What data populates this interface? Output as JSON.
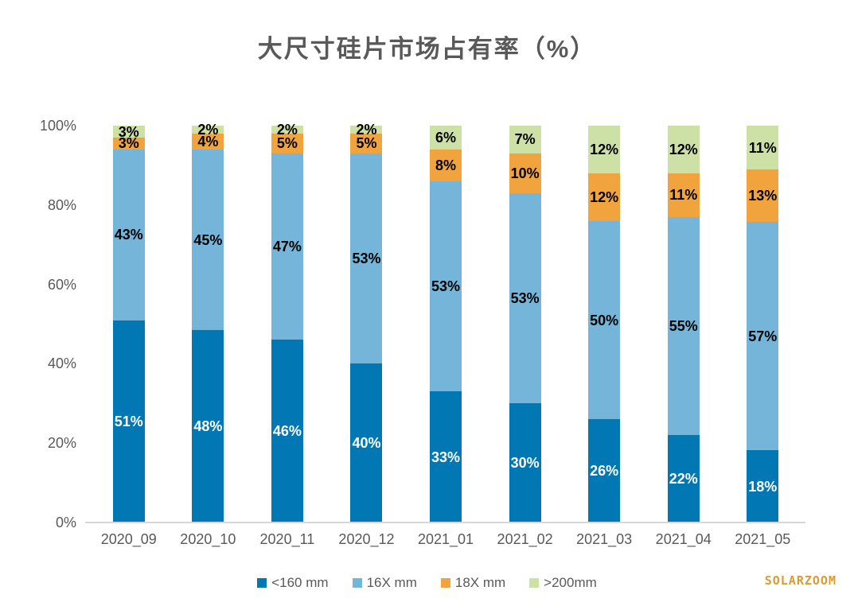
{
  "title": "大尺寸硅片市场占有率（%）",
  "watermark": "SOLARZOOM",
  "chart_data": {
    "type": "bar",
    "stacked": true,
    "normalized_100pct": true,
    "title": "大尺寸硅片市场占有率（%）",
    "categories": [
      "2020_09",
      "2020_10",
      "2020_11",
      "2020_12",
      "2021_01",
      "2021_02",
      "2021_03",
      "2021_04",
      "2021_05"
    ],
    "series": [
      {
        "name": "<160 mm",
        "color": "#0178b3",
        "label_color": "#ffffff",
        "values": [
          51,
          48,
          46,
          40,
          33,
          30,
          26,
          22,
          18
        ]
      },
      {
        "name": "16X mm",
        "color": "#74b5d9",
        "label_color": "#000000",
        "values": [
          43,
          45,
          47,
          53,
          53,
          53,
          50,
          55,
          57
        ]
      },
      {
        "name": "18X mm",
        "color": "#f1a43e",
        "label_color": "#000000",
        "values": [
          3,
          4,
          5,
          5,
          8,
          10,
          12,
          11,
          13
        ]
      },
      {
        "name": ">200mm",
        "color": "#cde1a6",
        "label_color": "#000000",
        "values": [
          3,
          2,
          2,
          2,
          6,
          7,
          12,
          12,
          11
        ]
      }
    ],
    "value_suffix": "%",
    "xlabel": "",
    "ylabel": "",
    "ylim": [
      0,
      100
    ],
    "y_ticks": [
      "0%",
      "20%",
      "40%",
      "60%",
      "80%",
      "100%"
    ],
    "grid": false,
    "legend_position": "bottom",
    "axis_text_color": "#595959",
    "baseline_color": "#d6d6d6"
  }
}
